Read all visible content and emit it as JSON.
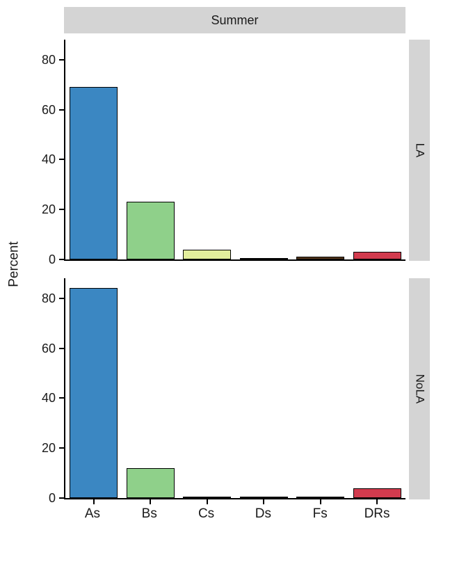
{
  "chart_data": {
    "type": "bar",
    "title_strip": "Summer",
    "ylabel": "Percent",
    "categories": [
      "As",
      "Bs",
      "Cs",
      "Ds",
      "Fs",
      "DRs"
    ],
    "bar_colors": [
      "#3B87C2",
      "#8FD08A",
      "#E3EE9C",
      "#F5F0B0",
      "#5A3A1E",
      "#D23B4E"
    ],
    "yticks": [
      0,
      20,
      40,
      60,
      80
    ],
    "ylim": [
      0,
      88
    ],
    "grid": false,
    "legend": "none",
    "panels": [
      {
        "facet": "LA",
        "values": [
          69,
          23,
          4,
          0.3,
          1,
          3
        ]
      },
      {
        "facet": "NoLA",
        "values": [
          84,
          12,
          0.3,
          0.3,
          0.3,
          4
        ]
      }
    ]
  }
}
